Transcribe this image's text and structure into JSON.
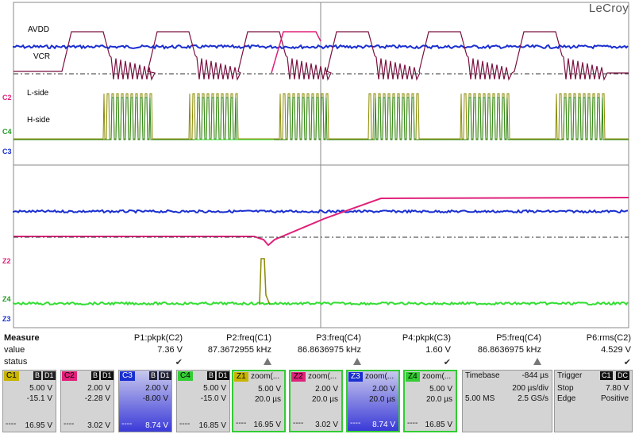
{
  "brand": "LeCroy",
  "trace_labels": {
    "avdd": "AVDD",
    "vcr": "VCR",
    "lside": "L-side",
    "hside": "H-side"
  },
  "channel_tags": {
    "c2": "C2",
    "c4": "C4",
    "c3": "C3",
    "z2": "Z2",
    "z4": "Z4",
    "z3": "Z3"
  },
  "colors": {
    "c1": "#b0a000",
    "c2": "#e0207a",
    "c3": "#1a2fd0",
    "c4": "#1f9a1f",
    "z1": "#b0a000",
    "z2": "#e0207a",
    "z3": "#1a2fd0",
    "z4": "#33dd33",
    "vcr": "#7a1040",
    "green_pwm": "#2e8a1a",
    "olive": "#8a8a00"
  },
  "measure": {
    "title": "Measure",
    "value_label": "value",
    "status_label": "status",
    "params": [
      {
        "name": "P1:pkpk(C2)",
        "value": "7.36 V",
        "status": "check"
      },
      {
        "name": "P2:freq(C1)",
        "value": "87.3672955 kHz",
        "status": "warn"
      },
      {
        "name": "P3:freq(C4)",
        "value": "86.8636975 kHz",
        "status": "warn"
      },
      {
        "name": "P4:pkpk(C3)",
        "value": "1.60 V",
        "status": "check"
      },
      {
        "name": "P5:freq(C4)",
        "value": "86.8636975 kHz",
        "status": "warn"
      },
      {
        "name": "P6:rms(C2)",
        "value": "4.529 V",
        "status": "check"
      }
    ]
  },
  "channels": [
    {
      "id": "C1",
      "badges": [
        "B",
        "D1"
      ],
      "scale": "5.00 V",
      "offset": "-15.1 V",
      "foot": "16.95 V",
      "color": "#c8b400"
    },
    {
      "id": "C2",
      "badges": [
        "B",
        "D1"
      ],
      "scale": "2.00 V",
      "offset": "-2.28 V",
      "foot": "3.02 V",
      "color": "#e0207a"
    },
    {
      "id": "C3",
      "badges": [
        "B",
        "D1"
      ],
      "scale": "2.00 V",
      "offset": "-8.00 V",
      "foot": "8.74 V",
      "color": "#1a2fd0"
    },
    {
      "id": "C4",
      "badges": [
        "B",
        "D1"
      ],
      "scale": "5.00 V",
      "offset": "-15.0 V",
      "foot": "16.85 V",
      "color": "#33cc33"
    }
  ],
  "zooms": [
    {
      "id": "Z1",
      "label": "zoom(...",
      "scale": "5.00 V",
      "time": "20.0 µs",
      "foot": "16.95 V",
      "color": "#c8b400"
    },
    {
      "id": "Z2",
      "label": "zoom(...",
      "scale": "2.00 V",
      "time": "20.0 µs",
      "foot": "3.02 V",
      "color": "#e0207a"
    },
    {
      "id": "Z3",
      "label": "zoom(...",
      "scale": "2.00 V",
      "time": "20.0 µs",
      "foot": "8.74 V",
      "color": "#1a2fd0"
    },
    {
      "id": "Z4",
      "label": "zoom(...",
      "scale": "5.00 V",
      "time": "20.0 µs",
      "foot": "16.85 V",
      "color": "#33cc33"
    }
  ],
  "timebase": {
    "label": "Timebase",
    "delay": "-844 µs",
    "per_div": "200 µs/div",
    "samples": "5.00 MS",
    "rate": "2.5 GS/s"
  },
  "trigger": {
    "label": "Trigger",
    "source": "C1",
    "coupling": "DC",
    "mode": "Stop",
    "level": "7.80 V",
    "type": "Edge",
    "slope": "Positive"
  }
}
